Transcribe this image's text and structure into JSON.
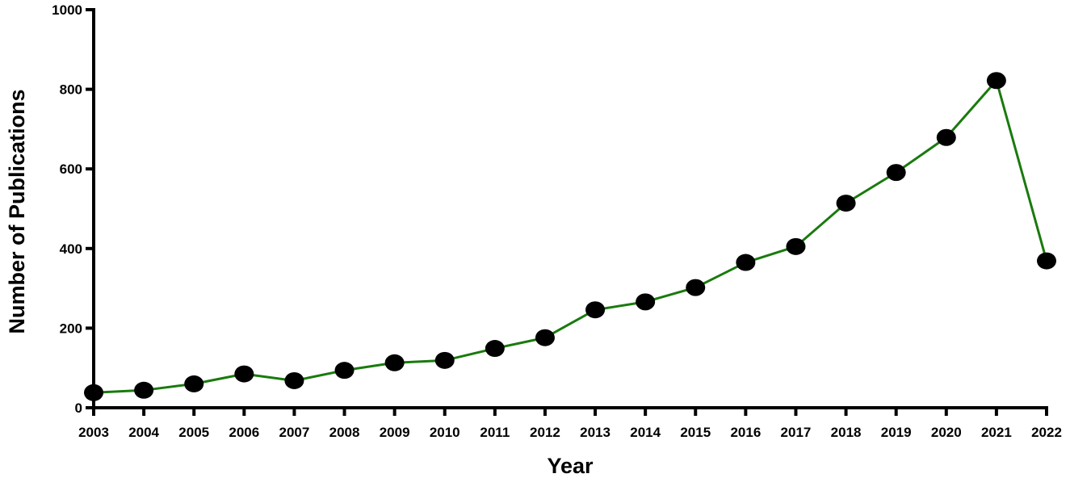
{
  "chart_data": {
    "type": "line",
    "title": "",
    "xlabel": "Year",
    "ylabel": "Number of Publications",
    "categories": [
      "2003",
      "2004",
      "2005",
      "2006",
      "2007",
      "2008",
      "2009",
      "2010",
      "2011",
      "2012",
      "2013",
      "2014",
      "2015",
      "2016",
      "2017",
      "2018",
      "2019",
      "2020",
      "2021",
      "2022"
    ],
    "series": [
      {
        "values": [
          38,
          44,
          60,
          85,
          68,
          94,
          113,
          119,
          149,
          176,
          246,
          266,
          302,
          365,
          405,
          514,
          591,
          679,
          822,
          369
        ],
        "color": "#1a7a0e",
        "marker_color": "#000000"
      }
    ],
    "ylim": [
      0,
      1000
    ],
    "yticks": [
      0,
      200,
      400,
      600,
      800,
      1000
    ],
    "grid": false,
    "legend": "none"
  }
}
